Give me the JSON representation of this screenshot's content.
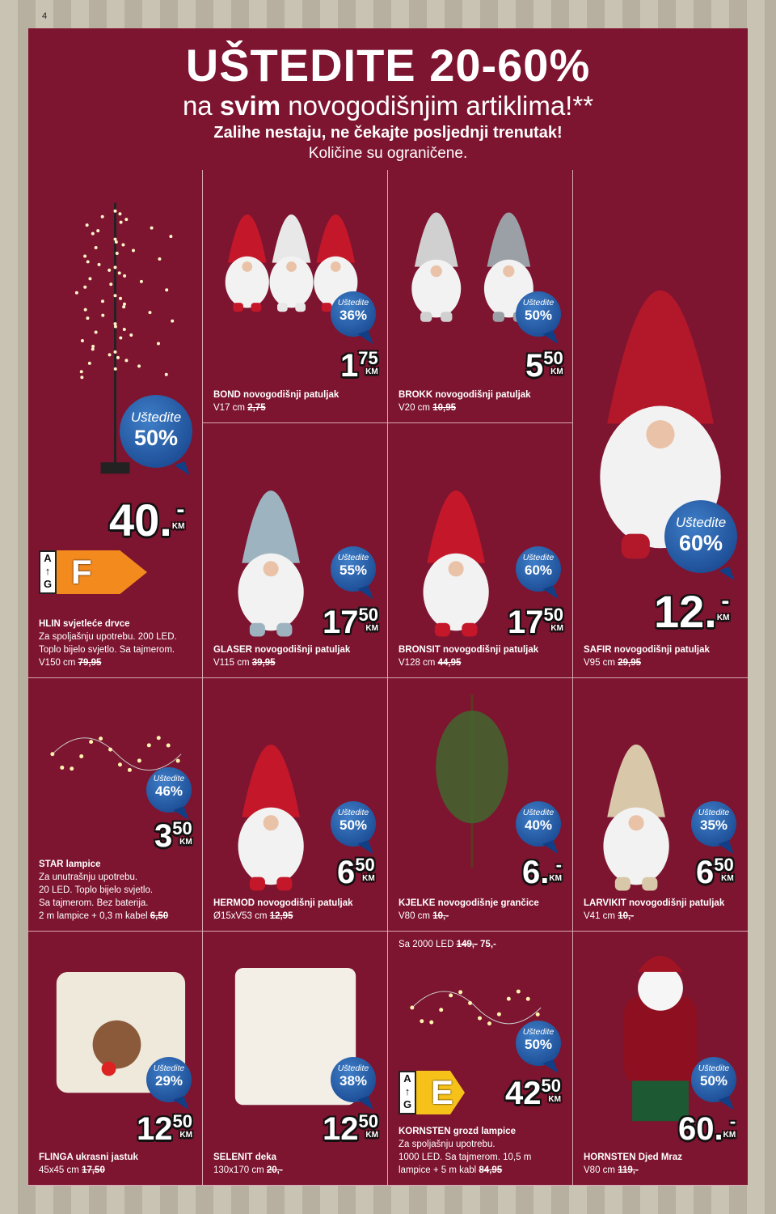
{
  "page_number": "4",
  "header": {
    "title": "UŠTEDITE 20-60%",
    "subtitle_pre": "na ",
    "subtitle_bold": "svim",
    "subtitle_post": " novogodišnjim artiklima!**",
    "line3": "Zalihe nestaju, ne čekajte posljednji trenutak!",
    "line4": "Količine su ograničene."
  },
  "badge_label": "Uštedite",
  "currency": "KM",
  "products": [
    {
      "name": "HLIN svjetleće drvce",
      "desc": [
        "Za spoljašnju upotrebu. 200 LED.",
        "Toplo bijelo svjetlo. Sa tajmerom."
      ],
      "size": "V150 cm",
      "old": "79,95",
      "save": "50%",
      "price_main": "40.",
      "price_sub": "-",
      "energy": "F",
      "energy_color": "#f28a1e"
    },
    {
      "name": "BOND novogodišnji patuljak",
      "desc": [],
      "size": "V17 cm",
      "old": "2,75",
      "save": "36%",
      "price_main": "1",
      "price_sub": "75"
    },
    {
      "name": "BROKK novogodišnji patuljak",
      "desc": [],
      "size": "V20 cm",
      "old": "10,95",
      "save": "50%",
      "price_main": "5",
      "price_sub": "50"
    },
    {
      "name": "SAFIR novogodišnji patuljak",
      "desc": [],
      "size": "V95 cm",
      "old": "29,95",
      "save": "60%",
      "price_main": "12.",
      "price_sub": "-"
    },
    {
      "name": "GLASER novogodišnji patuljak",
      "desc": [],
      "size": "V115 cm",
      "old": "39,95",
      "save": "55%",
      "price_main": "17",
      "price_sub": "50"
    },
    {
      "name": "BRONSIT novogodišnji patuljak",
      "desc": [],
      "size": "V128 cm",
      "old": "44,95",
      "save": "60%",
      "price_main": "17",
      "price_sub": "50"
    },
    {
      "name": "STAR lampice",
      "desc": [
        "Za unutrašnju upotrebu.",
        "20 LED. Toplo bijelo svjetlo.",
        "Sa tajmerom. Bez baterija."
      ],
      "size": "2 m lampice + 0,3 m kabel",
      "old": "6,50",
      "save": "46%",
      "price_main": "3",
      "price_sub": "50"
    },
    {
      "name": "HERMOD novogodišnji patuljak",
      "desc": [],
      "size": "Ø15xV53 cm",
      "old": "12,95",
      "save": "50%",
      "price_main": "6",
      "price_sub": "50"
    },
    {
      "name": "KJELKE novogodišnje grančice",
      "desc": [],
      "size": "V80 cm",
      "old": "10,-",
      "save": "40%",
      "price_main": "6.",
      "price_sub": "-"
    },
    {
      "name": "LARVIKIT novogodišnji patuljak",
      "desc": [],
      "size": "V41 cm",
      "old": "10,-",
      "save": "35%",
      "price_main": "6",
      "price_sub": "50"
    },
    {
      "name": "FLINGA ukrasni jastuk",
      "desc": [],
      "size": "45x45 cm",
      "old": "17,50",
      "save": "29%",
      "price_main": "12",
      "price_sub": "50"
    },
    {
      "name": "SELENIT deka",
      "desc": [],
      "size": "130x170 cm",
      "old": "20,-",
      "save": "38%",
      "price_main": "12",
      "price_sub": "50"
    },
    {
      "name": "KORNSTEN grozd lampice",
      "desc": [
        "Za spoljašnju upotrebu.",
        "1000 LED. Sa tajmerom. 10,5 m"
      ],
      "size": "lampice + 5 m kabl",
      "old": "84,95",
      "save": "50%",
      "price_main": "42",
      "price_sub": "50",
      "energy": "E",
      "energy_color": "#f6c21a",
      "note": {
        "text": "Sa 2000 LED ",
        "old": "149,-",
        "new": " 75,-"
      }
    },
    {
      "name": "HORNSTEN Djed Mraz",
      "desc": [],
      "size": "V80 cm",
      "old": "119,-",
      "save": "50%",
      "price_main": "60.",
      "price_sub": "-"
    }
  ],
  "energy_scale": {
    "top": "A",
    "arrow": "↑",
    "bottom": "G"
  },
  "colors": {
    "panel": "#7d1430",
    "badge": "#1d4f9a"
  }
}
